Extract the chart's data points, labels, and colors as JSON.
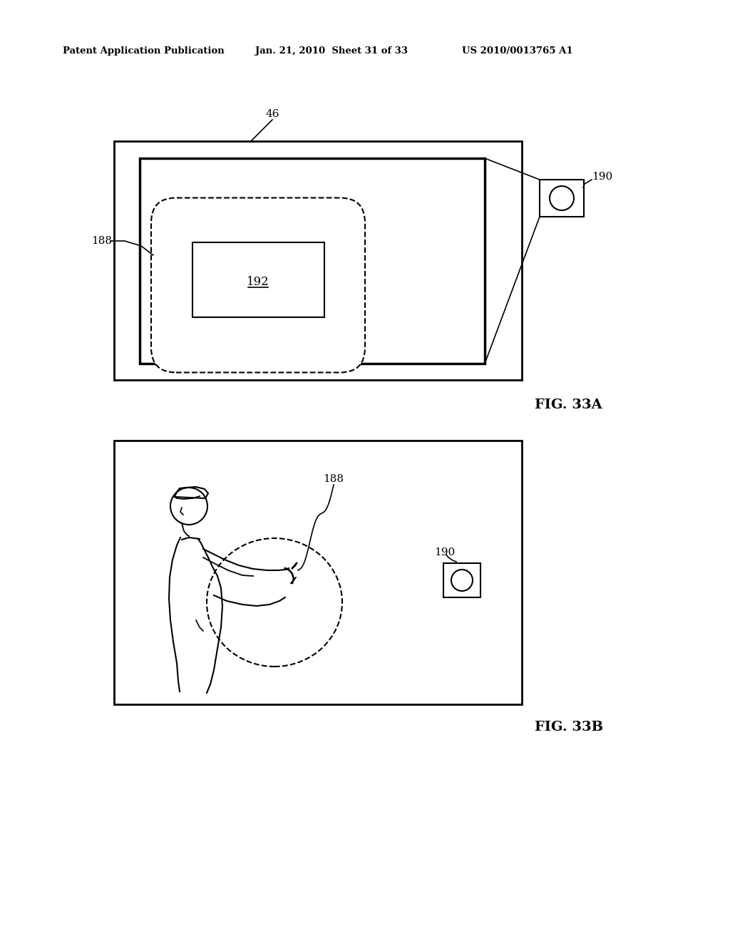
{
  "bg_color": "#ffffff",
  "header_text1": "Patent Application Publication",
  "header_text2": "Jan. 21, 2010  Sheet 31 of 33",
  "header_text3": "US 2010/0013765 A1",
  "fig33a_label": "FIG. 33A",
  "fig33b_label": "FIG. 33B",
  "label_46": "46",
  "label_188a": "188",
  "label_190a": "190",
  "label_192": "192",
  "label_188b": "188",
  "label_190b": "190"
}
